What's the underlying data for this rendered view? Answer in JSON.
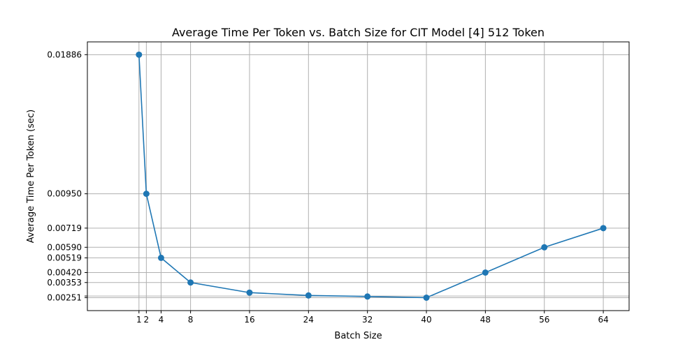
{
  "chart_data": {
    "type": "line",
    "title": "Average Time Per Token vs. Batch Size for CIT Model [4] 512 Token",
    "xlabel": "Batch Size",
    "ylabel": "Average Time Per Token (sec)",
    "xlim": [
      -6,
      67.5
    ],
    "ylim": [
      0.00164,
      0.01972
    ],
    "grid": true,
    "legend": "none",
    "color": "#1f77b4",
    "x_ticks": [
      1,
      2,
      4,
      8,
      16,
      24,
      32,
      40,
      48,
      56,
      64
    ],
    "y_ticks": [
      0.01886,
      0.0095,
      0.00719,
      0.0059,
      0.00519,
      0.0042,
      0.00353,
      0.00262,
      0.00251
    ],
    "y_tick_labels": [
      "0.01886",
      "0.00950",
      "0.00719",
      "0.00590",
      "0.00519",
      "0.00420",
      "0.00353",
      "",
      "0.00251"
    ],
    "series": [
      {
        "x": [
          1,
          2,
          4,
          8,
          16,
          24,
          32,
          40,
          48,
          56,
          64
        ],
        "y": [
          0.01886,
          0.0095,
          0.00519,
          0.00353,
          0.00285,
          0.00266,
          0.00259,
          0.00251,
          0.0042,
          0.0059,
          0.00719
        ]
      }
    ]
  }
}
